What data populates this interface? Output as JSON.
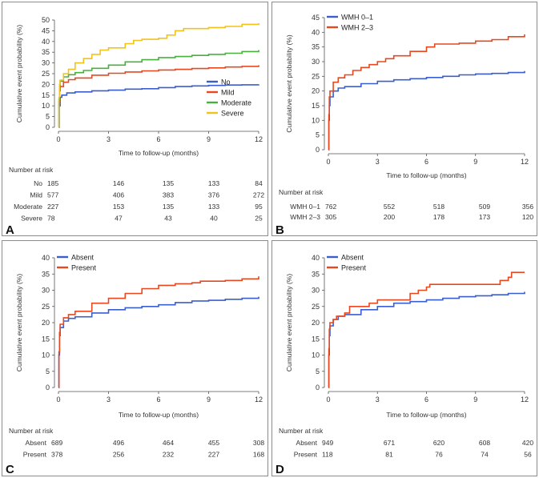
{
  "chart_data": [
    {
      "panel": "A",
      "type": "line",
      "panel_label": "A",
      "ylabel": "Cumulative event probability (%)",
      "xlabel": "Time to follow-up (months)",
      "ylim": [
        0,
        50
      ],
      "yticks": [
        0,
        5,
        10,
        15,
        20,
        25,
        30,
        35,
        40,
        45,
        50
      ],
      "xlim": [
        0,
        12
      ],
      "xticks": [
        0,
        3,
        6,
        9,
        12
      ],
      "legend_position": "bottom-right",
      "series": [
        {
          "name": "No",
          "color": "#3a5fcd",
          "points": [
            [
              0,
              0
            ],
            [
              0.05,
              10
            ],
            [
              0.1,
              14
            ],
            [
              0.2,
              15
            ],
            [
              0.5,
              16
            ],
            [
              1,
              16.5
            ],
            [
              2,
              17
            ],
            [
              3,
              17.3
            ],
            [
              4,
              17.8
            ],
            [
              5,
              18
            ],
            [
              6,
              18.5
            ],
            [
              7,
              19
            ],
            [
              8,
              19.3
            ],
            [
              9,
              19.5
            ],
            [
              10,
              19.7
            ],
            [
              11,
              19.8
            ],
            [
              12,
              20
            ]
          ]
        },
        {
          "name": "Mild",
          "color": "#e8481f",
          "points": [
            [
              0,
              0
            ],
            [
              0.03,
              12
            ],
            [
              0.06,
              17
            ],
            [
              0.1,
              19
            ],
            [
              0.3,
              21
            ],
            [
              0.6,
              22.2
            ],
            [
              1,
              23
            ],
            [
              2,
              24.3
            ],
            [
              3,
              25.2
            ],
            [
              4,
              25.8
            ],
            [
              5,
              26.3
            ],
            [
              6,
              26.7
            ],
            [
              7,
              27
            ],
            [
              8,
              27.4
            ],
            [
              9,
              27.7
            ],
            [
              10,
              28.1
            ],
            [
              11,
              28.4
            ],
            [
              12,
              28.9
            ]
          ]
        },
        {
          "name": "Moderate",
          "color": "#49b03f",
          "points": [
            [
              0,
              0
            ],
            [
              0.03,
              13
            ],
            [
              0.06,
              19
            ],
            [
              0.1,
              21.5
            ],
            [
              0.3,
              23.5
            ],
            [
              0.6,
              24.5
            ],
            [
              1,
              25.5
            ],
            [
              1.5,
              26.5
            ],
            [
              2,
              27.5
            ],
            [
              3,
              29
            ],
            [
              4,
              30.5
            ],
            [
              5,
              31.5
            ],
            [
              6,
              32.5
            ],
            [
              7,
              33
            ],
            [
              8,
              33.5
            ],
            [
              9,
              34
            ],
            [
              10,
              34.5
            ],
            [
              11,
              35.3
            ],
            [
              12,
              36
            ]
          ]
        },
        {
          "name": "Severe",
          "color": "#f2c21b",
          "points": [
            [
              0,
              0
            ],
            [
              0.03,
              14
            ],
            [
              0.06,
              20
            ],
            [
              0.1,
              22
            ],
            [
              0.3,
              25
            ],
            [
              0.6,
              27
            ],
            [
              1,
              30
            ],
            [
              1.5,
              32
            ],
            [
              2,
              34
            ],
            [
              2.5,
              36
            ],
            [
              3,
              37
            ],
            [
              4,
              39
            ],
            [
              4.5,
              40.5
            ],
            [
              5,
              41
            ],
            [
              6,
              41.5
            ],
            [
              6.5,
              43
            ],
            [
              7,
              45
            ],
            [
              7.5,
              46
            ],
            [
              9,
              46.5
            ],
            [
              10,
              47
            ],
            [
              11,
              48
            ],
            [
              12,
              48.5
            ]
          ]
        }
      ],
      "risk_title": "Number at risk",
      "risk_rows": [
        {
          "label": "No",
          "values": [
            "185",
            "146",
            "135",
            "133",
            "84"
          ]
        },
        {
          "label": "Mild",
          "values": [
            "577",
            "406",
            "383",
            "376",
            "272"
          ]
        },
        {
          "label": "Moderate",
          "values": [
            "227",
            "153",
            "135",
            "133",
            "95"
          ]
        },
        {
          "label": "Severe",
          "values": [
            "78",
            "47",
            "43",
            "40",
            "25"
          ]
        }
      ]
    },
    {
      "panel": "B",
      "type": "line",
      "panel_label": "B",
      "ylabel": "Cumulative event probability (%)",
      "xlabel": "Time to follow-up (months)",
      "ylim": [
        0,
        45
      ],
      "yticks": [
        0,
        5,
        10,
        15,
        20,
        25,
        30,
        35,
        40,
        45
      ],
      "xlim": [
        0,
        12
      ],
      "xticks": [
        0,
        3,
        6,
        9,
        12
      ],
      "legend_position": "top-left",
      "series": [
        {
          "name": "WMH 0–1",
          "color": "#3a5fcd",
          "points": [
            [
              0,
              0
            ],
            [
              0.03,
              10
            ],
            [
              0.06,
              15
            ],
            [
              0.1,
              18
            ],
            [
              0.3,
              20
            ],
            [
              0.6,
              21
            ],
            [
              1,
              21.5
            ],
            [
              2,
              22.5
            ],
            [
              3,
              23.3
            ],
            [
              4,
              23.8
            ],
            [
              5,
              24.2
            ],
            [
              6,
              24.6
            ],
            [
              7,
              25
            ],
            [
              8,
              25.5
            ],
            [
              9,
              25.8
            ],
            [
              10,
              26
            ],
            [
              11,
              26.3
            ],
            [
              12,
              26.8
            ]
          ]
        },
        {
          "name": "WMH 2–3",
          "color": "#e8481f",
          "points": [
            [
              0,
              0
            ],
            [
              0.03,
              12
            ],
            [
              0.06,
              18
            ],
            [
              0.1,
              20
            ],
            [
              0.3,
              23
            ],
            [
              0.6,
              24.5
            ],
            [
              1,
              25.5
            ],
            [
              1.5,
              27
            ],
            [
              2,
              28
            ],
            [
              2.5,
              29
            ],
            [
              3,
              30
            ],
            [
              3.5,
              31
            ],
            [
              4,
              32
            ],
            [
              5,
              33.5
            ],
            [
              6,
              35
            ],
            [
              6.5,
              36
            ],
            [
              8,
              36.3
            ],
            [
              9,
              37
            ],
            [
              10,
              37.5
            ],
            [
              11,
              38.5
            ],
            [
              12,
              39.3
            ]
          ]
        }
      ],
      "risk_title": "Number at risk",
      "risk_rows": [
        {
          "label": "WMH 0–1",
          "values": [
            "762",
            "552",
            "518",
            "509",
            "356"
          ]
        },
        {
          "label": "WMH 2–3",
          "values": [
            "305",
            "200",
            "178",
            "173",
            "120"
          ]
        }
      ]
    },
    {
      "panel": "C",
      "type": "line",
      "panel_label": "C",
      "ylabel": "Cumulative event probability (%)",
      "xlabel": "Time to follow-up (months)",
      "ylim": [
        0,
        40
      ],
      "yticks": [
        0,
        5,
        10,
        15,
        20,
        25,
        30,
        35,
        40
      ],
      "xlim": [
        0,
        12
      ],
      "xticks": [
        0,
        3,
        6,
        9,
        12
      ],
      "legend_position": "top-left",
      "series": [
        {
          "name": "Absent",
          "color": "#3a5fcd",
          "points": [
            [
              0,
              0
            ],
            [
              0.03,
              10
            ],
            [
              0.06,
              16
            ],
            [
              0.1,
              18.5
            ],
            [
              0.3,
              20.5
            ],
            [
              0.6,
              21.3
            ],
            [
              1,
              21.8
            ],
            [
              2,
              23
            ],
            [
              3,
              24
            ],
            [
              4,
              24.6
            ],
            [
              5,
              25
            ],
            [
              6,
              25.5
            ],
            [
              7,
              26.2
            ],
            [
              8,
              26.7
            ],
            [
              9,
              26.9
            ],
            [
              10,
              27.2
            ],
            [
              11,
              27.5
            ],
            [
              12,
              28
            ]
          ]
        },
        {
          "name": "Present",
          "color": "#e8481f",
          "points": [
            [
              0,
              0
            ],
            [
              0.03,
              11
            ],
            [
              0.06,
              17
            ],
            [
              0.1,
              19.5
            ],
            [
              0.3,
              21.5
            ],
            [
              0.6,
              22.5
            ],
            [
              1,
              23.5
            ],
            [
              2,
              26
            ],
            [
              3,
              27.5
            ],
            [
              4,
              29
            ],
            [
              5,
              30.5
            ],
            [
              6,
              31.5
            ],
            [
              7,
              32
            ],
            [
              8,
              32.3
            ],
            [
              8.5,
              32.8
            ],
            [
              10,
              33
            ],
            [
              11,
              33.5
            ],
            [
              12,
              34.3
            ]
          ]
        }
      ],
      "risk_title": "Number at risk",
      "risk_rows": [
        {
          "label": "Absent",
          "values": [
            "689",
            "496",
            "464",
            "455",
            "308"
          ]
        },
        {
          "label": "Present",
          "values": [
            "378",
            "256",
            "232",
            "227",
            "168"
          ]
        }
      ]
    },
    {
      "panel": "D",
      "type": "line",
      "panel_label": "D",
      "ylabel": "Cumulative event probability (%)",
      "xlabel": "Time to follow-up (months)",
      "ylim": [
        0,
        40
      ],
      "yticks": [
        0,
        5,
        10,
        15,
        20,
        25,
        30,
        35,
        40
      ],
      "xlim": [
        0,
        12
      ],
      "xticks": [
        0,
        3,
        6,
        9,
        12
      ],
      "legend_position": "top-left",
      "series": [
        {
          "name": "Absent",
          "color": "#3a5fcd",
          "points": [
            [
              0,
              0
            ],
            [
              0.03,
              10
            ],
            [
              0.06,
              16
            ],
            [
              0.1,
              19
            ],
            [
              0.3,
              21
            ],
            [
              0.6,
              22
            ],
            [
              1,
              22.5
            ],
            [
              2,
              24
            ],
            [
              3,
              25
            ],
            [
              4,
              26
            ],
            [
              5,
              26.5
            ],
            [
              6,
              27
            ],
            [
              7,
              27.5
            ],
            [
              8,
              28
            ],
            [
              9,
              28.3
            ],
            [
              10,
              28.6
            ],
            [
              11,
              29
            ],
            [
              12,
              29.5
            ]
          ]
        },
        {
          "name": "Present",
          "color": "#e8481f",
          "points": [
            [
              0,
              0
            ],
            [
              0.03,
              12
            ],
            [
              0.06,
              18
            ],
            [
              0.1,
              20
            ],
            [
              0.3,
              21
            ],
            [
              0.5,
              22
            ],
            [
              1,
              23
            ],
            [
              1.3,
              25
            ],
            [
              2.5,
              26
            ],
            [
              3,
              27
            ],
            [
              4,
              27
            ],
            [
              5,
              29
            ],
            [
              5.5,
              30
            ],
            [
              6,
              31
            ],
            [
              6.2,
              31.8
            ],
            [
              10,
              31.8
            ],
            [
              10.5,
              33
            ],
            [
              11,
              34
            ],
            [
              11.2,
              35.5
            ],
            [
              12,
              35.5
            ]
          ]
        }
      ],
      "risk_title": "Number at risk",
      "risk_rows": [
        {
          "label": "Absent",
          "values": [
            "949",
            "671",
            "620",
            "608",
            "420"
          ]
        },
        {
          "label": "Present",
          "values": [
            "118",
            "81",
            "76",
            "74",
            "56"
          ]
        }
      ]
    }
  ]
}
